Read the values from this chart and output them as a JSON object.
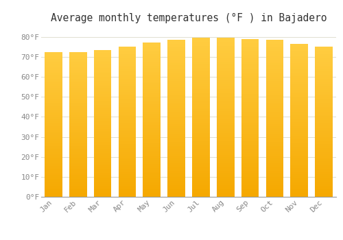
{
  "months": [
    "Jan",
    "Feb",
    "Mar",
    "Apr",
    "May",
    "Jun",
    "Jul",
    "Aug",
    "Sep",
    "Oct",
    "Nov",
    "Dec"
  ],
  "values": [
    72.5,
    72.5,
    73.5,
    75.0,
    77.0,
    78.5,
    79.5,
    79.5,
    79.0,
    78.5,
    76.5,
    75.0
  ],
  "title": "Average monthly temperatures (°F ) in Bajadero",
  "ytick_labels": [
    "0°F",
    "10°F",
    "20°F",
    "30°F",
    "40°F",
    "50°F",
    "60°F",
    "70°F",
    "80°F"
  ],
  "ytick_values": [
    0,
    10,
    20,
    30,
    40,
    50,
    60,
    70,
    80
  ],
  "ylim": [
    0,
    84
  ],
  "background_color": "#FFFFFF",
  "grid_color": "#E0DED0",
  "bar_color_bottom": "#F5A800",
  "bar_color_top": "#FFCC40",
  "title_fontsize": 10.5,
  "tick_fontsize": 8,
  "bar_width": 0.72
}
